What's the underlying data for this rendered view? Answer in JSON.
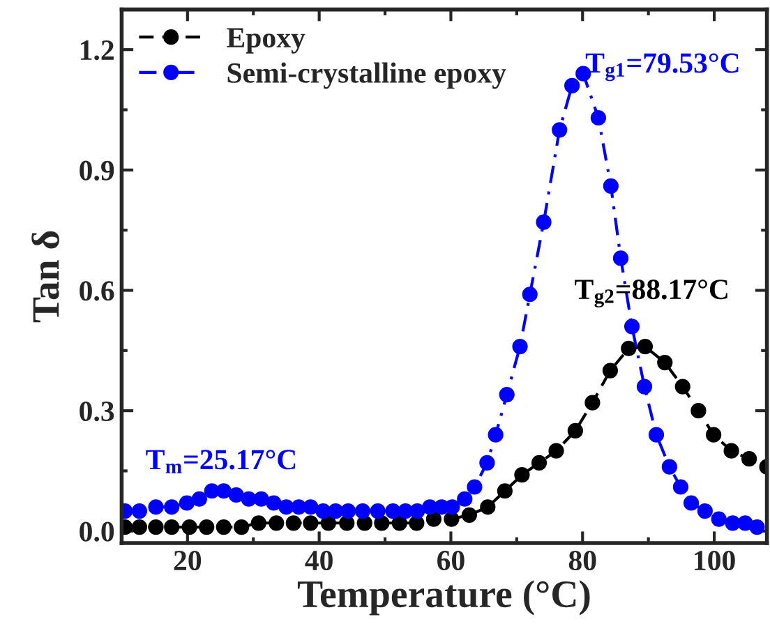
{
  "chart_data": {
    "type": "line",
    "xlabel": "Temperature (°C)",
    "ylabel": "Tan δ",
    "xlim": [
      10,
      108
    ],
    "xticks": [
      20,
      40,
      60,
      80,
      100
    ],
    "ylim": [
      -0.03,
      1.3
    ],
    "yticks": [
      {
        "value": 0,
        "label": "0.0"
      },
      0.3,
      0.6,
      0.9,
      1.2
    ],
    "grid": false,
    "legend": "top left",
    "marker": "circle",
    "series": [
      {
        "name": "Epoxy",
        "color": "#000000",
        "line_style": "dashed",
        "x": [
          10.5,
          12.7,
          15.2,
          17.6,
          20.3,
          22.9,
          25.5,
          28.2,
          30.8,
          33.5,
          36.1,
          38.7,
          41.4,
          44.2,
          46.9,
          49.5,
          52.2,
          54.8,
          57.4,
          60.1,
          62.8,
          65.6,
          68.2,
          70.8,
          73.4,
          76.0,
          78.9,
          81.5,
          84.2,
          87.0,
          89.5,
          92.5,
          95.2,
          97.6,
          99.9,
          102.6,
          105.3,
          108.0
        ],
        "values": [
          0.01,
          0.01,
          0.01,
          0.01,
          0.01,
          0.01,
          0.01,
          0.01,
          0.02,
          0.02,
          0.02,
          0.02,
          0.02,
          0.02,
          0.02,
          0.02,
          0.02,
          0.02,
          0.03,
          0.03,
          0.04,
          0.06,
          0.1,
          0.14,
          0.17,
          0.2,
          0.25,
          0.32,
          0.4,
          0.455,
          0.46,
          0.42,
          0.36,
          0.3,
          0.24,
          0.2,
          0.18,
          0.16
        ]
      },
      {
        "name": "Semi-crystalline epoxy",
        "color": "#0000ff",
        "line_style": "dashdot",
        "x": [
          10.5,
          12.7,
          15.2,
          17.6,
          19.9,
          21.8,
          23.7,
          25.5,
          27.4,
          29.3,
          31.2,
          33.1,
          35.0,
          36.9,
          38.7,
          40.6,
          42.5,
          44.4,
          46.6,
          48.9,
          51.2,
          53.1,
          54.9,
          56.8,
          58.6,
          60.2,
          62.1,
          63.6,
          65.5,
          66.8,
          68.5,
          70.5,
          72.0,
          74.1,
          76.5,
          78.4,
          80.1,
          82.4,
          84.3,
          85.8,
          87.5,
          89.4,
          91.2,
          93.2,
          94.9,
          96.5,
          98.6,
          100.7,
          102.8,
          104.7,
          106.5
        ],
        "values": [
          0.05,
          0.05,
          0.06,
          0.06,
          0.07,
          0.08,
          0.1,
          0.1,
          0.09,
          0.08,
          0.08,
          0.07,
          0.06,
          0.06,
          0.06,
          0.05,
          0.05,
          0.05,
          0.05,
          0.05,
          0.05,
          0.05,
          0.05,
          0.06,
          0.06,
          0.06,
          0.08,
          0.11,
          0.17,
          0.24,
          0.34,
          0.46,
          0.59,
          0.77,
          1.0,
          1.11,
          1.14,
          1.03,
          0.86,
          0.68,
          0.51,
          0.36,
          0.24,
          0.16,
          0.11,
          0.07,
          0.05,
          0.03,
          0.02,
          0.02,
          0.01
        ]
      }
    ],
    "annotations": [
      {
        "text": "T$_{m}$=25.17°C",
        "x": 25.17,
        "y": 0.1
      },
      {
        "text": "T$_{g1}$=79.53°C",
        "x": 79.53,
        "y": 1.14
      },
      {
        "text": "T$_{g2}$=88.17°C",
        "x": 88.17,
        "y": 0.46
      }
    ]
  }
}
